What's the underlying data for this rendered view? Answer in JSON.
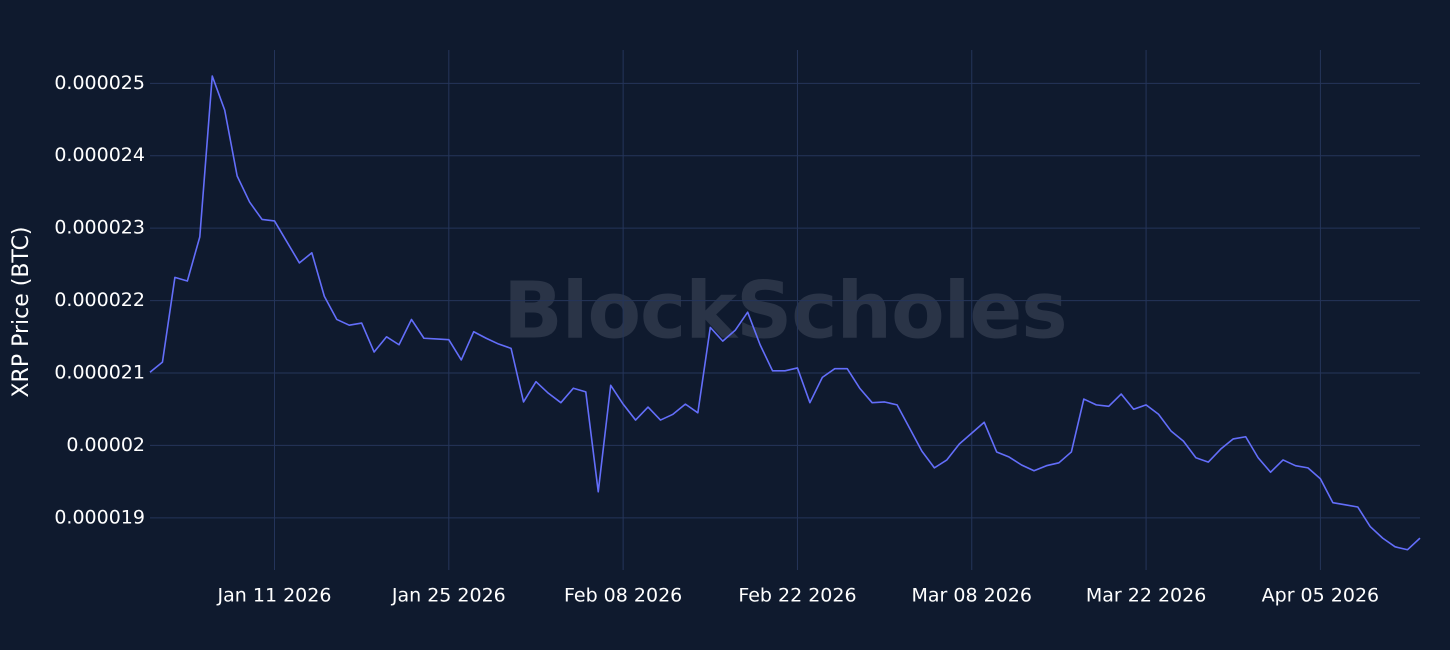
{
  "chart_data": {
    "type": "line",
    "y_label": "XRP Price (BTC)",
    "watermark": "BlockScholes",
    "color": "#636efa",
    "grid": true,
    "x": [
      "2026-01-01",
      "2026-01-02",
      "2026-01-03",
      "2026-01-04",
      "2026-01-05",
      "2026-01-06",
      "2026-01-07",
      "2026-01-08",
      "2026-01-09",
      "2026-01-10",
      "2026-01-11",
      "2026-01-12",
      "2026-01-13",
      "2026-01-14",
      "2026-01-15",
      "2026-01-16",
      "2026-01-17",
      "2026-01-18",
      "2026-01-19",
      "2026-01-20",
      "2026-01-21",
      "2026-01-22",
      "2026-01-23",
      "2026-01-24",
      "2026-01-25",
      "2026-01-26",
      "2026-01-27",
      "2026-01-28",
      "2026-01-29",
      "2026-01-30",
      "2026-01-31",
      "2026-02-01",
      "2026-02-02",
      "2026-02-03",
      "2026-02-04",
      "2026-02-05",
      "2026-02-06",
      "2026-02-07",
      "2026-02-08",
      "2026-02-09",
      "2026-02-10",
      "2026-02-11",
      "2026-02-12",
      "2026-02-13",
      "2026-02-14",
      "2026-02-15",
      "2026-02-16",
      "2026-02-17",
      "2026-02-18",
      "2026-02-19",
      "2026-02-20",
      "2026-02-21",
      "2026-02-22",
      "2026-02-23",
      "2026-02-24",
      "2026-02-25",
      "2026-02-26",
      "2026-02-27",
      "2026-02-28",
      "2026-03-01",
      "2026-03-02",
      "2026-03-03",
      "2026-03-04",
      "2026-03-05",
      "2026-03-06",
      "2026-03-07",
      "2026-03-08",
      "2026-03-09",
      "2026-03-10",
      "2026-03-11",
      "2026-03-12",
      "2026-03-13",
      "2026-03-14",
      "2026-03-15",
      "2026-03-16",
      "2026-03-17",
      "2026-03-18",
      "2026-03-19",
      "2026-03-20",
      "2026-03-21",
      "2026-03-22",
      "2026-03-23",
      "2026-03-24",
      "2026-03-25",
      "2026-03-26",
      "2026-03-27",
      "2026-03-28",
      "2026-03-29",
      "2026-03-30",
      "2026-03-31",
      "2026-04-01",
      "2026-04-02",
      "2026-04-03",
      "2026-04-04",
      "2026-04-05",
      "2026-04-06",
      "2026-04-07",
      "2026-04-08",
      "2026-04-09",
      "2026-04-10",
      "2026-04-11",
      "2026-04-12",
      "2026-04-13"
    ],
    "values": [
      2.101e-05,
      2.115e-05,
      2.232e-05,
      2.227e-05,
      2.288e-05,
      2.51e-05,
      2.463e-05,
      2.372e-05,
      2.336e-05,
      2.312e-05,
      2.31e-05,
      2.281e-05,
      2.252e-05,
      2.266e-05,
      2.206e-05,
      2.174e-05,
      2.166e-05,
      2.169e-05,
      2.129e-05,
      2.15e-05,
      2.139e-05,
      2.174e-05,
      2.148e-05,
      2.147e-05,
      2.146e-05,
      2.118e-05,
      2.157e-05,
      2.148e-05,
      2.14e-05,
      2.134e-05,
      2.06e-05,
      2.088e-05,
      2.072e-05,
      2.059e-05,
      2.079e-05,
      2.074e-05,
      1.936e-05,
      2.083e-05,
      2.057e-05,
      2.035e-05,
      2.053e-05,
      2.035e-05,
      2.043e-05,
      2.057e-05,
      2.045e-05,
      2.163e-05,
      2.144e-05,
      2.159e-05,
      2.184e-05,
      2.139e-05,
      2.103e-05,
      2.103e-05,
      2.107e-05,
      2.059e-05,
      2.094e-05,
      2.106e-05,
      2.106e-05,
      2.079e-05,
      2.059e-05,
      2.06e-05,
      2.056e-05,
      2.024e-05,
      1.992e-05,
      1.969e-05,
      1.98e-05,
      2.002e-05,
      2.017e-05,
      2.032e-05,
      1.991e-05,
      1.984e-05,
      1.973e-05,
      1.965e-05,
      1.972e-05,
      1.976e-05,
      1.991e-05,
      2.064e-05,
      2.056e-05,
      2.054e-05,
      2.071e-05,
      2.05e-05,
      2.056e-05,
      2.043e-05,
      2.02e-05,
      2.006e-05,
      1.983e-05,
      1.977e-05,
      1.995e-05,
      2.009e-05,
      2.012e-05,
      1.983e-05,
      1.963e-05,
      1.98e-05,
      1.972e-05,
      1.969e-05,
      1.954e-05,
      1.921e-05,
      1.918e-05,
      1.915e-05,
      1.888e-05,
      1.872e-05,
      1.86e-05,
      1.856e-05,
      1.872e-05
    ],
    "xlim": [
      "2026-01-01",
      "2026-04-13"
    ],
    "xticks": [
      {
        "value": "2026-01-11",
        "label": "Jan 11 2026"
      },
      {
        "value": "2026-01-25",
        "label": "Jan 25 2026"
      },
      {
        "value": "2026-02-08",
        "label": "Feb 08 2026"
      },
      {
        "value": "2026-02-22",
        "label": "Feb 22 2026"
      },
      {
        "value": "2026-03-08",
        "label": "Mar 08 2026"
      },
      {
        "value": "2026-03-22",
        "label": "Mar 22 2026"
      },
      {
        "value": "2026-04-05",
        "label": "Apr 05 2026"
      }
    ],
    "ylim": [
      1.828e-05,
      2.546e-05
    ],
    "yticks": [
      1.9e-05,
      2e-05,
      2.1e-05,
      2.2e-05,
      2.3e-05,
      2.4e-05,
      2.5e-05
    ]
  }
}
